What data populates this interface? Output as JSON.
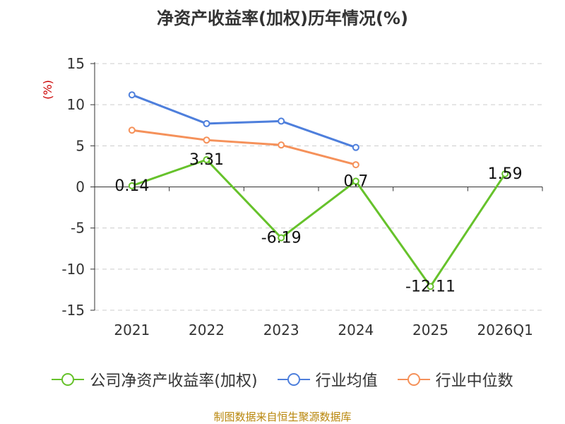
{
  "chart_data": {
    "type": "line",
    "title": "净资产收益率(加权)历年情况(%)",
    "ylabel": "(%)",
    "xlabel": "",
    "categories": [
      "2021",
      "2022",
      "2023",
      "2024",
      "2025",
      "2026Q1"
    ],
    "ylim": [
      -15,
      15
    ],
    "yticks": [
      15,
      10,
      5,
      0,
      -5,
      -10,
      -15
    ],
    "grid": true,
    "legend_position": "bottom",
    "series": [
      {
        "name": "公司净资产收益率(加权)",
        "color": "#66c22b",
        "values": [
          0.14,
          3.31,
          -6.19,
          0.7,
          -12.11,
          1.59
        ],
        "labels": [
          "0.14",
          "3.31",
          "-6.19",
          "0.7",
          "-12.11",
          "1.59"
        ]
      },
      {
        "name": "行业均值",
        "color": "#4e7fdc",
        "values": [
          11.2,
          7.7,
          8.0,
          4.8,
          null,
          null
        ]
      },
      {
        "name": "行业中位数",
        "color": "#f5915a",
        "values": [
          6.9,
          5.7,
          5.1,
          2.7,
          null,
          null
        ]
      }
    ]
  },
  "source": "制图数据来自恒生聚源数据库"
}
